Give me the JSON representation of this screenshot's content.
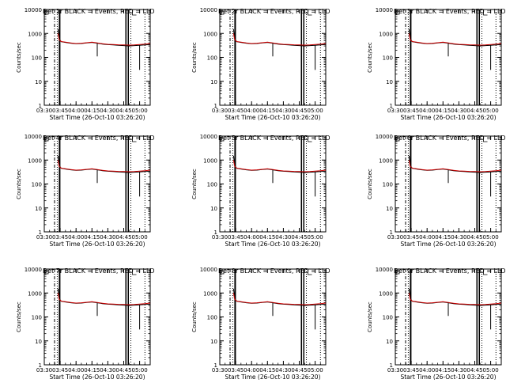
{
  "colors": {
    "events": "#000000",
    "lld": "#cc0000",
    "axes": "#000000",
    "background": "#ffffff"
  },
  "chart_data": [
    {
      "type": "line",
      "title": "Det 1r BLACK = Events, RED = LLD",
      "xlabel": "Start Time (26-Oct-10 03:26:20)",
      "ylabel": "Counts/sec",
      "y_scale": "log",
      "ylim": [
        1,
        10000
      ],
      "xlim": [
        "03:30",
        "05:10"
      ],
      "x_ticks": [
        "03:30",
        "03:45",
        "04:00",
        "04:15",
        "04:30",
        "04:45",
        "05:00"
      ],
      "y_ticks": [
        "1",
        "10",
        "100",
        "1000",
        "10000"
      ],
      "series": [
        {
          "name": "BLACK = Events",
          "color": "#000000",
          "x": [
            "03:43",
            "03:44",
            "03:46",
            "03:50",
            "03:55",
            "04:00",
            "04:05",
            "04:10",
            "04:15",
            "04:20",
            "04:25",
            "04:30",
            "04:35",
            "04:40",
            "04:45",
            "04:50",
            "04:55",
            "05:00",
            "05:05",
            "05:10"
          ],
          "y": [
            1500,
            600,
            450,
            420,
            390,
            370,
            380,
            400,
            420,
            390,
            360,
            340,
            330,
            320,
            310,
            300,
            310,
            320,
            330,
            340
          ]
        },
        {
          "name": "RED = LLD",
          "color": "#cc0000",
          "x": [
            "03:43",
            "03:44",
            "03:46",
            "03:50",
            "03:55",
            "04:00",
            "04:05",
            "04:10",
            "04:15",
            "04:20",
            "04:25",
            "04:30",
            "04:35",
            "04:40",
            "04:45",
            "04:50",
            "04:55",
            "05:00",
            "05:05",
            "05:10"
          ],
          "y": [
            1000,
            550,
            460,
            430,
            400,
            380,
            390,
            410,
            430,
            400,
            370,
            350,
            345,
            335,
            330,
            325,
            330,
            345,
            360,
            380
          ]
        }
      ]
    },
    {
      "type": "line",
      "title": "Det 2r BLACK = Events, RED = LLD",
      "xlabel": "Start Time (26-Oct-10 03:26:20)",
      "ylabel": "Counts/sec",
      "y_scale": "log",
      "ylim": [
        1,
        10000
      ],
      "xlim": [
        "03:30",
        "05:10"
      ],
      "x_ticks": [
        "03:30",
        "03:45",
        "04:00",
        "04:15",
        "04:30",
        "04:45",
        "05:00"
      ],
      "y_ticks": [
        "1",
        "10",
        "100",
        "1000",
        "10000"
      ]
    },
    {
      "type": "line",
      "title": "Det 3r BLACK = Events, RED = LLD",
      "xlabel": "Start Time (26-Oct-10 03:26:20)",
      "ylabel": "Counts/sec",
      "y_scale": "log",
      "ylim": [
        1,
        10000
      ],
      "xlim": [
        "03:30",
        "05:10"
      ],
      "x_ticks": [
        "03:30",
        "03:45",
        "04:00",
        "04:15",
        "04:30",
        "04:45",
        "05:00"
      ],
      "y_ticks": [
        "1",
        "10",
        "100",
        "1000",
        "10000"
      ]
    },
    {
      "type": "line",
      "title": "Det 4r BLACK = Events, RED = LLD",
      "xlabel": "Start Time (26-Oct-10 03:26:20)",
      "ylabel": "Counts/sec",
      "y_scale": "log",
      "ylim": [
        1,
        10000
      ],
      "xlim": [
        "03:30",
        "05:10"
      ],
      "x_ticks": [
        "03:30",
        "03:45",
        "04:00",
        "04:15",
        "04:30",
        "04:45",
        "05:00"
      ],
      "y_ticks": [
        "1",
        "10",
        "100",
        "1000",
        "10000"
      ]
    },
    {
      "type": "line",
      "title": "Det 5r BLACK = Events, RED = LLD",
      "xlabel": "Start Time (26-Oct-10 03:26:20)",
      "ylabel": "Counts/sec",
      "y_scale": "log",
      "ylim": [
        1,
        10000
      ],
      "xlim": [
        "03:30",
        "05:10"
      ],
      "x_ticks": [
        "03:30",
        "03:45",
        "04:00",
        "04:15",
        "04:30",
        "04:45",
        "05:00"
      ],
      "y_ticks": [
        "1",
        "10",
        "100",
        "1000",
        "10000"
      ]
    },
    {
      "type": "line",
      "title": "Det 6r BLACK = Events, RED = LLD",
      "xlabel": "Start Time (26-Oct-10 03:26:20)",
      "ylabel": "Counts/sec",
      "y_scale": "log",
      "ylim": [
        1,
        10000
      ],
      "xlim": [
        "03:30",
        "05:10"
      ],
      "x_ticks": [
        "03:30",
        "03:45",
        "04:00",
        "04:15",
        "04:30",
        "04:45",
        "05:00"
      ],
      "y_ticks": [
        "1",
        "10",
        "100",
        "1000",
        "10000"
      ]
    },
    {
      "type": "line",
      "title": "Det 7r BLACK = Events, RED = LLD",
      "xlabel": "Start Time (26-Oct-10 03:26:20)",
      "ylabel": "Counts/sec",
      "y_scale": "log",
      "ylim": [
        1,
        10000
      ],
      "xlim": [
        "03:30",
        "05:10"
      ],
      "x_ticks": [
        "03:30",
        "03:45",
        "04:00",
        "04:15",
        "04:30",
        "04:45",
        "05:00"
      ],
      "y_ticks": [
        "1",
        "10",
        "100",
        "1000",
        "10000"
      ]
    },
    {
      "type": "line",
      "title": "Det 8r BLACK = Events, RED = LLD",
      "xlabel": "Start Time (26-Oct-10 03:26:20)",
      "ylabel": "Counts/sec",
      "y_scale": "log",
      "ylim": [
        1,
        10000
      ],
      "xlim": [
        "03:30",
        "05:10"
      ],
      "x_ticks": [
        "03:30",
        "03:45",
        "04:00",
        "04:15",
        "04:30",
        "04:45",
        "05:00"
      ],
      "y_ticks": [
        "1",
        "10",
        "100",
        "1000",
        "10000"
      ]
    },
    {
      "type": "line",
      "title": "Det 9r BLACK = Events, RED = LLD",
      "xlabel": "Start Time (26-Oct-10 03:26:20)",
      "ylabel": "Counts/sec",
      "y_scale": "log",
      "ylim": [
        1,
        10000
      ],
      "xlim": [
        "03:30",
        "05:10"
      ],
      "x_ticks": [
        "03:30",
        "03:45",
        "04:00",
        "04:15",
        "04:30",
        "04:45",
        "05:00"
      ],
      "y_ticks": [
        "1",
        "10",
        "100",
        "1000",
        "10000"
      ]
    }
  ]
}
